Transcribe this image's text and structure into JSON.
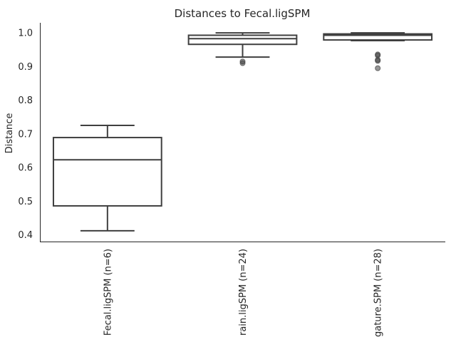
{
  "chart_data": {
    "type": "box",
    "title": "Distances to Fecal.ligSPM",
    "ylabel": "Distance",
    "xlabel": "",
    "ylim": [
      0.38,
      1.03
    ],
    "yticks": [
      0.4,
      0.5,
      0.6,
      0.7,
      0.8,
      0.9,
      1.0
    ],
    "yticks_labels": [
      "0.4",
      "0.5",
      "0.6",
      "0.7",
      "0.8",
      "0.9",
      "1.0"
    ],
    "grid": false,
    "categories": [
      "Fecal.ligSPM (n=6)",
      "rain.ligSPM (n=24)",
      "gature.SPM (n=28)"
    ],
    "boxes": [
      {
        "whisker_low": 0.412,
        "q1": 0.486,
        "median": 0.623,
        "q3": 0.689,
        "whisker_high": 0.725,
        "outliers": []
      },
      {
        "whisker_low": 0.928,
        "q1": 0.966,
        "median": 0.983,
        "q3": 0.993,
        "whisker_high": 1.0,
        "outliers": [
          0.91,
          0.915
        ]
      },
      {
        "whisker_low": 0.977,
        "q1": 0.979,
        "median": 0.993,
        "q3": 0.997,
        "whisker_high": 1.0,
        "outliers": [
          0.895,
          0.917,
          0.92,
          0.933,
          0.936
        ]
      }
    ]
  }
}
